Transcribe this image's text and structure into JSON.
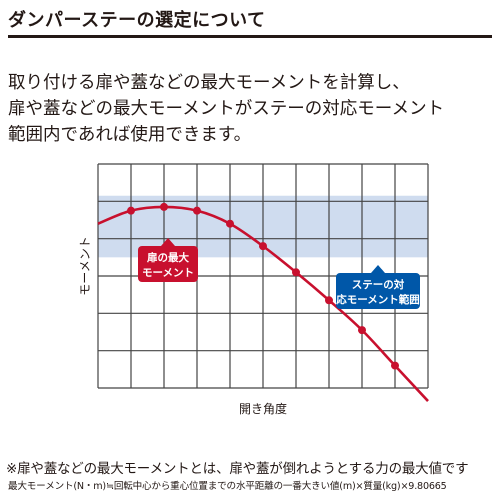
{
  "heading": "ダンパーステーの選定について",
  "lead": [
    "取り付ける扉や蓋などの最大モーメントを計算し、",
    "扉や蓋などの最大モーメントがステーの対応モーメント",
    "範囲内であれば使用できます。"
  ],
  "chart_data": {
    "type": "line",
    "xlabel": "開き角度",
    "ylabel": "モーメント",
    "xlim": [
      0,
      10
    ],
    "ylim": [
      0,
      6
    ],
    "grid": true,
    "x": [
      1,
      2,
      3,
      4,
      5,
      6,
      7,
      8,
      9
    ],
    "series": [
      {
        "name": "扉の最大モーメント",
        "values": [
          4.75,
          4.85,
          4.75,
          4.4,
          3.8,
          3.1,
          2.35,
          1.55,
          0.6
        ]
      }
    ],
    "band": {
      "label": "ステーの対応モーメント範囲",
      "min": 3.5,
      "max": 5.15
    },
    "callouts": {
      "door_max": "扉の最大モーメント",
      "stay_range": "ステーの対応モーメント範囲"
    },
    "colors": {
      "curve": "#c8102e",
      "band": "#cfdcef",
      "callout_blue": "#0057a8",
      "grid": "#444444"
    }
  },
  "note": "※扉や蓋などの最大モーメントとは、扉や蓋が倒れようとする力の最大値です",
  "formula": "最大モーメント(N・m)≒回転中心から重心位置までの水平距離の一番大きい値(m)×質量(kg)×9.80665"
}
